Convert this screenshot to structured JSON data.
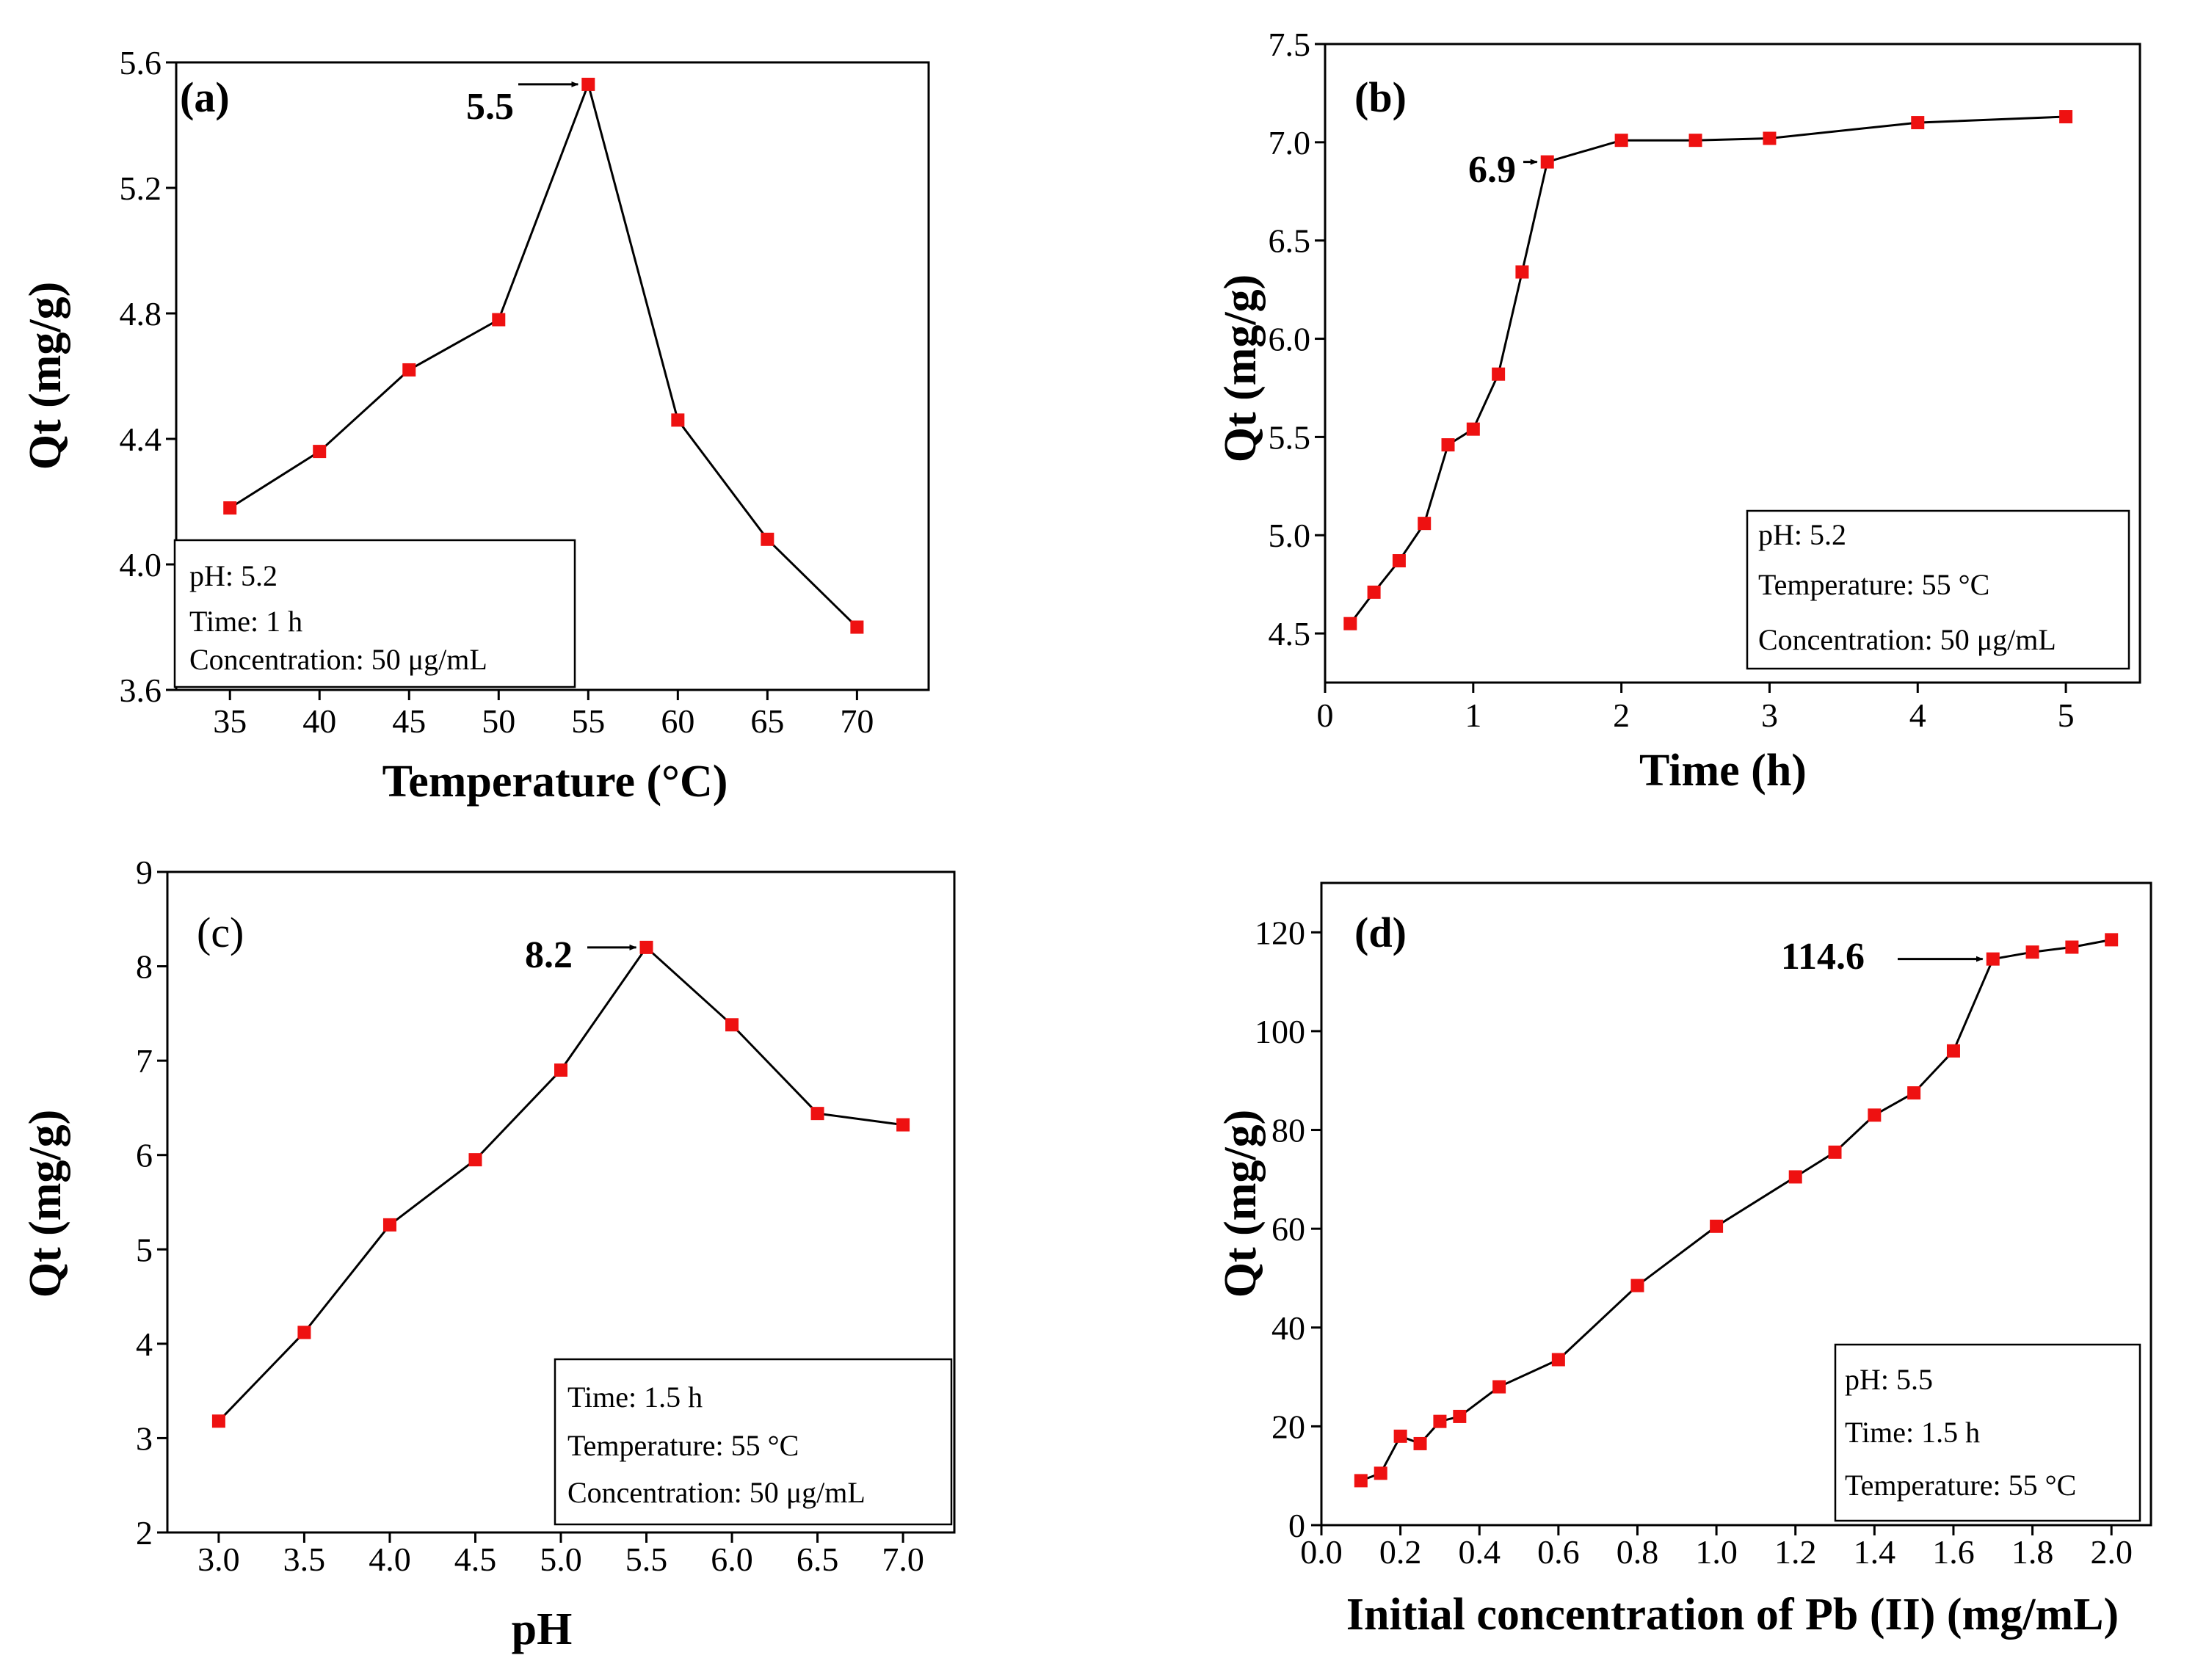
{
  "figure": {
    "background": "#ffffff",
    "marker_color": "#ee1111",
    "line_color": "#000000"
  },
  "chart_data": [
    {
      "type": "line",
      "panel_label": "(a)",
      "xlabel": "Temperature (°C)",
      "ylabel": "Qt (mg/g)",
      "xlim": [
        32,
        74
      ],
      "ylim": [
        3.6,
        5.6
      ],
      "xticks": [
        35,
        40,
        45,
        50,
        55,
        60,
        65,
        70
      ],
      "yticks": [
        3.6,
        4.0,
        4.4,
        4.8,
        5.2,
        5.6
      ],
      "xtick_labels": [
        "35",
        "40",
        "45",
        "50",
        "55",
        "60",
        "65",
        "70"
      ],
      "ytick_labels": [
        "3.6",
        "4.0",
        "4.4",
        "4.8",
        "5.2",
        "5.6"
      ],
      "x": [
        35,
        40,
        45,
        50,
        55,
        60,
        65,
        70
      ],
      "y": [
        4.18,
        4.36,
        4.62,
        4.78,
        5.53,
        4.46,
        4.08,
        3.8
      ],
      "annotation": {
        "text": "5.5",
        "x": 55,
        "y": 5.53
      },
      "conditions": [
        "pH: 5.2",
        "Time: 1 h",
        "Concentration: 50 μg/mL"
      ]
    },
    {
      "type": "line",
      "panel_label": "(b)",
      "xlabel": "Time (h)",
      "ylabel": "Qt (mg/g)",
      "xlim": [
        0,
        5.5
      ],
      "ylim": [
        4.25,
        7.5
      ],
      "xticks": [
        0,
        1,
        2,
        3,
        4,
        5
      ],
      "yticks": [
        4.5,
        5.0,
        5.5,
        6.0,
        6.5,
        7.0,
        7.5
      ],
      "xtick_labels": [
        "0",
        "1",
        "2",
        "3",
        "4",
        "5"
      ],
      "ytick_labels": [
        "4.5",
        "5.0",
        "5.5",
        "6.0",
        "6.5",
        "7.0",
        "7.5"
      ],
      "x": [
        0.17,
        0.33,
        0.5,
        0.67,
        0.83,
        1.0,
        1.17,
        1.33,
        1.5,
        2.0,
        2.5,
        3.0,
        4.0,
        5.0
      ],
      "y": [
        4.55,
        4.71,
        4.87,
        5.06,
        5.46,
        5.54,
        5.82,
        6.34,
        6.9,
        7.01,
        7.01,
        7.02,
        7.1,
        7.13
      ],
      "annotation": {
        "text": "6.9",
        "x": 1.5,
        "y": 6.9
      },
      "conditions": [
        "pH: 5.2",
        "Temperature: 55 °C",
        "Concentration: 50 μg/mL"
      ]
    },
    {
      "type": "line",
      "panel_label": "(c)",
      "xlabel": "pH",
      "ylabel": "Qt (mg/g)",
      "xlim": [
        2.7,
        7.3
      ],
      "ylim": [
        2,
        9
      ],
      "xticks": [
        3.0,
        3.5,
        4.0,
        4.5,
        5.0,
        5.5,
        6.0,
        6.5,
        7.0
      ],
      "yticks": [
        2,
        3,
        4,
        5,
        6,
        7,
        8,
        9
      ],
      "xtick_labels": [
        "3.0",
        "3.5",
        "4.0",
        "4.5",
        "5.0",
        "5.5",
        "6.0",
        "6.5",
        "7.0"
      ],
      "ytick_labels": [
        "2",
        "3",
        "4",
        "5",
        "6",
        "7",
        "8",
        "9"
      ],
      "x": [
        3.0,
        3.5,
        4.0,
        4.5,
        5.0,
        5.5,
        6.0,
        6.5,
        7.0
      ],
      "y": [
        3.18,
        4.12,
        5.26,
        5.95,
        6.9,
        8.2,
        7.38,
        6.44,
        6.32
      ],
      "annotation": {
        "text": "8.2",
        "x": 5.5,
        "y": 8.2
      },
      "conditions": [
        "Time: 1.5 h",
        "Temperature: 55 °C",
        "Concentration: 50 μg/mL"
      ]
    },
    {
      "type": "line",
      "panel_label": "(d)",
      "xlabel": "Initial concentration of Pb (II) (mg/mL)",
      "ylabel": "Qt (mg/g)",
      "xlim": [
        0,
        2.1
      ],
      "ylim": [
        0,
        130
      ],
      "xticks": [
        0.0,
        0.2,
        0.4,
        0.6,
        0.8,
        1.0,
        1.2,
        1.4,
        1.6,
        1.8,
        2.0
      ],
      "yticks": [
        0,
        20,
        40,
        60,
        80,
        100,
        120
      ],
      "xtick_labels": [
        "0.0",
        "0.2",
        "0.4",
        "0.6",
        "0.8",
        "1.0",
        "1.2",
        "1.4",
        "1.6",
        "1.8",
        "2.0"
      ],
      "ytick_labels": [
        "0",
        "20",
        "40",
        "60",
        "80",
        "100",
        "120"
      ],
      "x": [
        0.1,
        0.15,
        0.2,
        0.25,
        0.3,
        0.35,
        0.45,
        0.6,
        0.8,
        1.0,
        1.2,
        1.3,
        1.4,
        1.5,
        1.6,
        1.7,
        1.8,
        1.9,
        2.0
      ],
      "y": [
        9,
        10.5,
        18,
        16.5,
        21,
        22,
        28,
        33.5,
        48.5,
        60.5,
        70.5,
        75.5,
        83,
        87.5,
        96,
        114.6,
        116,
        117,
        118.5
      ],
      "annotation": {
        "text": "114.6",
        "x": 1.7,
        "y": 114.6
      },
      "conditions": [
        "pH: 5.5",
        "Time: 1.5 h",
        "Temperature: 55 °C"
      ]
    }
  ]
}
